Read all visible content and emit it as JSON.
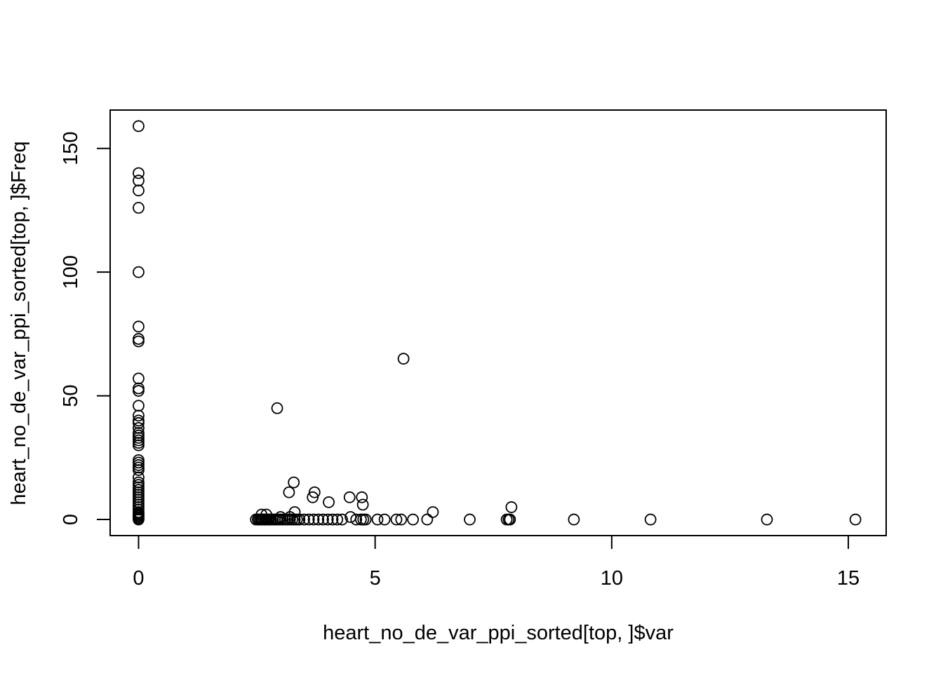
{
  "chart_data": {
    "type": "scatter",
    "title": "",
    "xlabel": "heart_no_de_var_ppi_sorted[top, ]$var",
    "ylabel": "heart_no_de_var_ppi_sorted[top, ]$Freq",
    "xlim": [
      -0.6,
      15.8
    ],
    "ylim": [
      -6.5,
      165.5
    ],
    "x_ticks": [
      0,
      5,
      10,
      15
    ],
    "x_tick_labels": [
      "0",
      "5",
      "10",
      "15"
    ],
    "y_ticks": [
      0,
      50,
      100,
      150
    ],
    "y_tick_labels": [
      "0",
      "50",
      "100",
      "150"
    ],
    "grid": false,
    "legend": "none",
    "marker": "open-circle",
    "series": [
      {
        "name": "points",
        "x": [
          0,
          0,
          0,
          0,
          0,
          0,
          0,
          0,
          0,
          0,
          0,
          0,
          0,
          0,
          0,
          0,
          0,
          0,
          0,
          0,
          0,
          0,
          0,
          0,
          0,
          0,
          0,
          0,
          0,
          0,
          0,
          0,
          0,
          0,
          0,
          0,
          0,
          0,
          0,
          0,
          0,
          0,
          0,
          0,
          0,
          0,
          0,
          0,
          2.48,
          2.52,
          2.55,
          2.58,
          2.6,
          2.62,
          2.65,
          2.68,
          2.7,
          2.73,
          2.76,
          2.8,
          2.84,
          2.88,
          2.92,
          2.96,
          3.0,
          3.05,
          3.1,
          3.15,
          3.2,
          3.25,
          3.3,
          3.35,
          3.4,
          3.5,
          3.6,
          3.7,
          3.8,
          3.9,
          4.0,
          4.1,
          4.2,
          4.3,
          4.6,
          4.7,
          4.75,
          4.8,
          5.05,
          5.2,
          5.45,
          5.55,
          5.8,
          6.1,
          7.0,
          7.78,
          7.82,
          7.85,
          9.2,
          10.82,
          13.28,
          15.15,
          2.6,
          2.7,
          3.0,
          3.2,
          2.93,
          3.18,
          3.28,
          3.3,
          3.68,
          3.72,
          4.02,
          4.48,
          4.46,
          4.72,
          4.74,
          5.6,
          6.22,
          7.88
        ],
        "y": [
          159,
          140,
          137,
          133,
          126,
          100,
          78,
          73,
          72,
          57,
          53,
          52,
          46,
          42,
          40,
          39,
          37,
          35,
          34,
          33,
          32,
          31,
          30,
          24,
          23,
          22,
          21,
          20,
          17,
          15,
          14,
          13,
          12,
          11,
          10,
          9,
          8,
          7,
          6,
          5,
          4,
          3,
          2.5,
          2,
          1.5,
          1,
          0.5,
          0,
          0,
          0,
          0,
          0,
          0,
          0,
          0,
          0,
          0,
          0,
          0,
          0,
          0,
          0,
          0,
          0,
          0,
          0,
          0,
          0,
          0,
          0,
          0,
          0,
          0,
          0,
          0,
          0,
          0,
          0,
          0,
          0,
          0,
          0,
          0,
          0,
          0,
          0,
          0,
          0,
          0,
          0,
          0,
          0,
          0,
          0,
          0,
          0,
          0,
          0,
          0,
          0,
          2,
          2,
          1,
          1,
          45,
          11,
          15,
          3,
          9,
          11,
          7,
          1,
          9,
          9,
          6,
          65,
          3,
          5
        ]
      }
    ]
  }
}
